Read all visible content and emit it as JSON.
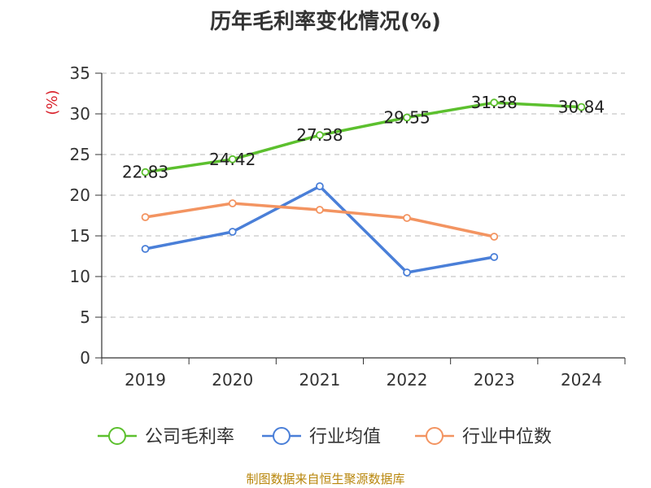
{
  "chart_data": {
    "type": "line",
    "title": "历年毛利率变化情况(%)",
    "ylabel": "(%)",
    "xlabel": "",
    "categories": [
      "2019",
      "2020",
      "2021",
      "2022",
      "2023",
      "2024"
    ],
    "ylim": [
      0,
      35
    ],
    "yticks": [
      0,
      5,
      10,
      15,
      20,
      25,
      30,
      35
    ],
    "grid": true,
    "legend_position": "bottom",
    "series": [
      {
        "name": "公司毛利率",
        "color": "#5cc02e",
        "values": [
          22.83,
          24.42,
          27.38,
          29.55,
          31.38,
          30.84
        ],
        "show_labels": true
      },
      {
        "name": "行业均值",
        "color": "#4a7fd8",
        "values": [
          13.4,
          15.5,
          21.1,
          10.5,
          12.4,
          null
        ],
        "show_labels": false
      },
      {
        "name": "行业中位数",
        "color": "#f39461",
        "values": [
          17.3,
          19.0,
          18.2,
          17.2,
          14.9,
          null
        ],
        "show_labels": false
      }
    ]
  },
  "source": "制图数据来自恒生聚源数据库"
}
